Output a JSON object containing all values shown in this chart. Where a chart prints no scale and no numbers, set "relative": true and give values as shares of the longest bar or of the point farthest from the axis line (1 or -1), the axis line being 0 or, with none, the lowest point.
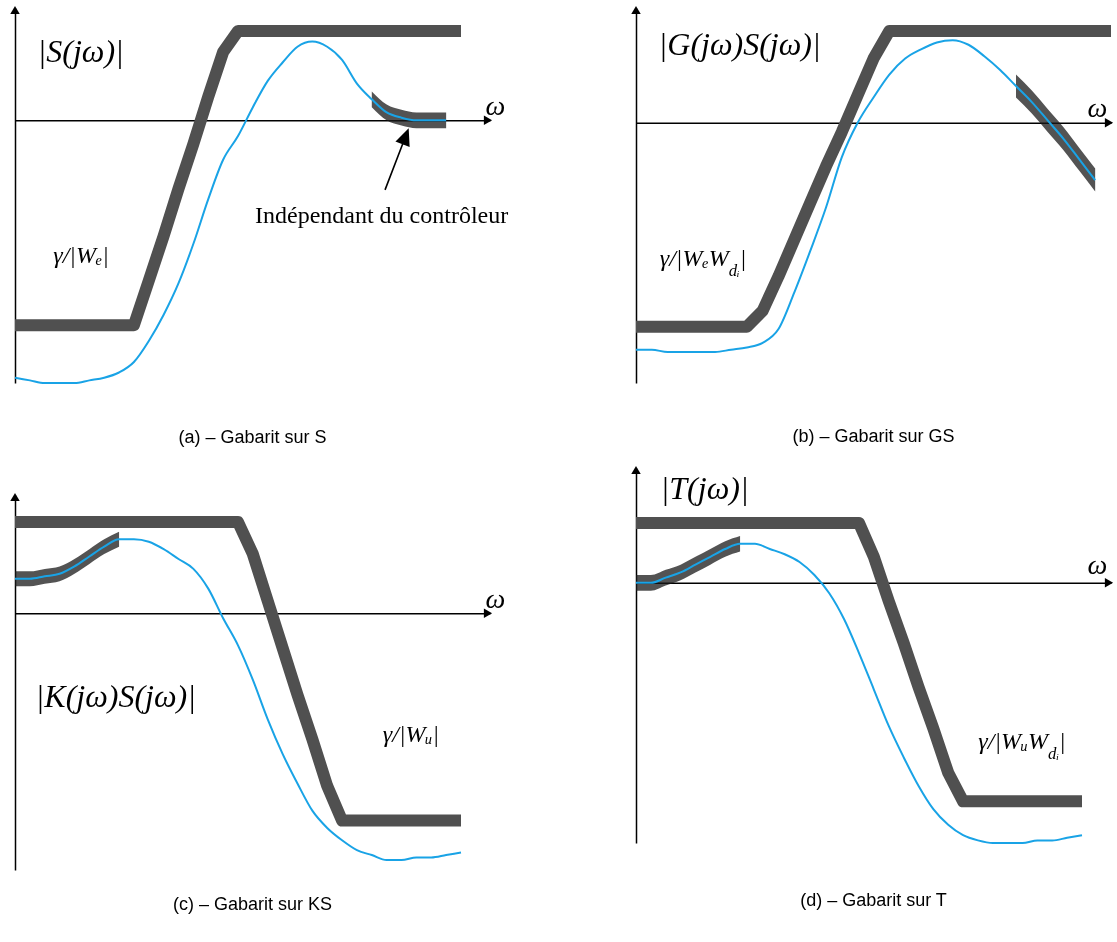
{
  "chart_data": [
    {
      "type": "line",
      "title": "(a) – Gabarit sur S",
      "xlabel": "ω",
      "ylabel": "|S(jω)|",
      "annotations": [
        "γ/|Wₑ|",
        "Indépendant du contrôleur"
      ],
      "relative": true,
      "categories": [
        null,
        null,
        null,
        null,
        null,
        null,
        null,
        null,
        null,
        null,
        null,
        null,
        null,
        null,
        null,
        null,
        null,
        null,
        null,
        null,
        null,
        null,
        null,
        null,
        null,
        null,
        null,
        null,
        null,
        null,
        null
      ],
      "series": [
        {
          "color": "#505050",
          "values": [
            -0.78,
            -0.78,
            -0.78,
            -0.78,
            -0.78,
            -0.78,
            -0.78,
            -0.78,
            -0.78,
            -0.61,
            -0.44,
            -0.26,
            -0.09,
            0.09,
            0.26,
            0.34,
            0.34,
            0.34,
            0.34,
            0.34,
            0.34,
            0.34,
            0.34,
            0.34,
            0.34,
            0.34,
            0.34,
            0.34,
            0.34,
            0.34,
            0.34
          ]
        },
        {
          "color": "#19a3e6",
          "values": [
            -0.98,
            -0.99,
            -1.0,
            -1.0,
            -1.0,
            -0.99,
            -0.98,
            -0.96,
            -0.92,
            -0.84,
            -0.74,
            -0.62,
            -0.47,
            -0.3,
            -0.15,
            -0.06,
            0.05,
            0.15,
            0.22,
            0.28,
            0.3,
            0.28,
            0.23,
            0.14,
            0.08,
            0.03,
            0.01,
            0,
            0,
            0,
            null
          ],
          "lower": [
            null,
            null,
            null,
            null,
            null,
            null,
            null,
            null,
            null,
            null,
            null,
            null,
            null,
            null,
            null,
            null,
            null,
            null,
            null,
            null,
            null,
            null,
            null,
            null,
            0.05,
            0.0,
            -0.02,
            -0.03,
            -0.03,
            -0.03,
            null
          ],
          "upper": [
            null,
            null,
            null,
            null,
            null,
            null,
            null,
            null,
            null,
            null,
            null,
            null,
            null,
            null,
            null,
            null,
            null,
            null,
            null,
            null,
            null,
            null,
            null,
            null,
            0.11,
            0.06,
            0.04,
            0.03,
            0.03,
            0.03,
            null
          ]
        }
      ]
    },
    {
      "type": "line",
      "title": "(b) – Gabarit sur GS",
      "xlabel": "ω",
      "ylabel": "|G(jω)S(jω)|",
      "annotations": [
        "γ/|WₑW$_{dᵢ}$|"
      ],
      "relative": true,
      "categories": [
        null,
        null,
        null,
        null,
        null,
        null,
        null,
        null,
        null,
        null,
        null,
        null,
        null,
        null,
        null,
        null,
        null,
        null,
        null,
        null,
        null,
        null,
        null,
        null,
        null,
        null,
        null,
        null,
        null,
        null,
        null
      ],
      "series": [
        {
          "color": "#505050",
          "values": [
            -0.89,
            -0.89,
            -0.89,
            -0.89,
            -0.89,
            -0.89,
            -0.89,
            -0.89,
            -0.82,
            -0.67,
            -0.51,
            -0.35,
            -0.19,
            -0.04,
            0.12,
            0.28,
            0.4,
            0.4,
            0.4,
            0.4,
            0.4,
            0.4,
            0.4,
            0.4,
            0.4,
            0.4,
            0.4,
            0.4,
            0.4,
            0.4,
            0.4
          ]
        },
        {
          "color": "#19a3e6",
          "values": [
            -0.99,
            -0.99,
            -1.0,
            -1.0,
            -1.0,
            -1.0,
            -0.99,
            -0.98,
            -0.96,
            -0.9,
            -0.74,
            -0.56,
            -0.37,
            -0.15,
            0.0,
            0.11,
            0.21,
            0.28,
            0.32,
            0.35,
            0.36,
            0.34,
            0.29,
            0.23,
            0.16,
            0.09,
            0.01,
            -0.07,
            -0.16,
            -0.25,
            null
          ],
          "lower": [
            null,
            null,
            null,
            null,
            null,
            null,
            null,
            null,
            null,
            null,
            null,
            null,
            null,
            null,
            null,
            null,
            null,
            null,
            null,
            null,
            null,
            null,
            null,
            null,
            0.11,
            0.04,
            -0.04,
            -0.12,
            -0.21,
            -0.3,
            null
          ],
          "upper": [
            null,
            null,
            null,
            null,
            null,
            null,
            null,
            null,
            null,
            null,
            null,
            null,
            null,
            null,
            null,
            null,
            null,
            null,
            null,
            null,
            null,
            null,
            null,
            null,
            0.21,
            0.14,
            0.06,
            -0.02,
            -0.11,
            -0.2,
            null
          ]
        }
      ]
    },
    {
      "type": "line",
      "title": "(c) – Gabarit sur KS",
      "xlabel": "ω",
      "ylabel": "|K(jω)S(jω)|",
      "annotations": [
        "γ/|Wᵤ|"
      ],
      "relative": true,
      "categories": [
        null,
        null,
        null,
        null,
        null,
        null,
        null,
        null,
        null,
        null,
        null,
        null,
        null,
        null,
        null,
        null,
        null,
        null,
        null,
        null,
        null,
        null,
        null,
        null,
        null,
        null,
        null,
        null,
        null,
        null,
        null
      ],
      "series": [
        {
          "color": "#505050",
          "values": [
            0.37,
            0.37,
            0.37,
            0.37,
            0.37,
            0.37,
            0.37,
            0.37,
            0.37,
            0.37,
            0.37,
            0.37,
            0.37,
            0.37,
            0.37,
            0.37,
            0.24,
            0.05,
            -0.14,
            -0.33,
            -0.51,
            -0.7,
            -0.84,
            -0.84,
            -0.84,
            -0.84,
            -0.84,
            -0.84,
            -0.84,
            -0.84,
            -0.84
          ]
        },
        {
          "color": "#19a3e6",
          "values": [
            0.14,
            0.14,
            0.15,
            0.16,
            0.19,
            0.23,
            0.27,
            0.3,
            0.3,
            0.29,
            0.26,
            0.22,
            0.18,
            0.1,
            -0.02,
            -0.13,
            -0.27,
            -0.43,
            -0.57,
            -0.69,
            -0.8,
            -0.87,
            -0.92,
            -0.96,
            -0.98,
            -1.0,
            -1.0,
            -0.99,
            -0.99,
            -0.98,
            -0.97
          ],
          "lower": [
            0.11,
            0.11,
            0.12,
            0.13,
            0.16,
            0.2,
            0.24,
            0.27,
            null,
            null,
            null,
            null,
            null,
            null,
            null,
            null,
            null,
            null,
            null,
            null,
            null,
            null,
            null,
            null,
            null,
            null,
            null,
            null,
            null,
            null,
            null
          ],
          "upper": [
            0.17,
            0.17,
            0.18,
            0.19,
            0.22,
            0.26,
            0.3,
            0.33,
            null,
            null,
            null,
            null,
            null,
            null,
            null,
            null,
            null,
            null,
            null,
            null,
            null,
            null,
            null,
            null,
            null,
            null,
            null,
            null,
            null,
            null,
            null
          ]
        }
      ]
    },
    {
      "type": "line",
      "title": "(d) – Gabarit sur T",
      "xlabel": "ω",
      "ylabel": "|T(jω)|",
      "annotations": [
        "γ/|WᵤW$_{dᵢ}$|"
      ],
      "relative": true,
      "categories": [
        null,
        null,
        null,
        null,
        null,
        null,
        null,
        null,
        null,
        null,
        null,
        null,
        null,
        null,
        null,
        null,
        null,
        null,
        null,
        null,
        null,
        null,
        null,
        null,
        null,
        null,
        null,
        null,
        null,
        null,
        null
      ],
      "series": [
        {
          "color": "#505050",
          "values": [
            0.23,
            0.23,
            0.23,
            0.23,
            0.23,
            0.23,
            0.23,
            0.23,
            0.23,
            0.23,
            0.23,
            0.23,
            0.23,
            0.23,
            0.23,
            0.23,
            0.1,
            -0.07,
            -0.23,
            -0.4,
            -0.56,
            -0.73,
            -0.84,
            -0.84,
            -0.84,
            -0.84,
            -0.84,
            -0.84,
            -0.84,
            -0.84,
            -0.84
          ]
        },
        {
          "color": "#19a3e6",
          "values": [
            0.0,
            0.0,
            0.02,
            0.04,
            0.07,
            0.1,
            0.13,
            0.15,
            0.15,
            0.13,
            0.11,
            0.08,
            0.03,
            -0.04,
            -0.14,
            -0.27,
            -0.41,
            -0.55,
            -0.67,
            -0.78,
            -0.87,
            -0.93,
            -0.97,
            -0.99,
            -1.0,
            -1.0,
            -1.0,
            -0.99,
            -0.99,
            -0.98,
            -0.97
          ],
          "lower": [
            -0.03,
            -0.03,
            -0.01,
            0.01,
            0.04,
            0.07,
            0.1,
            0.12,
            null,
            null,
            null,
            null,
            null,
            null,
            null,
            null,
            null,
            null,
            null,
            null,
            null,
            null,
            null,
            null,
            null,
            null,
            null,
            null,
            null,
            null,
            null
          ],
          "upper": [
            0.03,
            0.03,
            0.05,
            0.07,
            0.1,
            0.13,
            0.16,
            0.18,
            null,
            null,
            null,
            null,
            null,
            null,
            null,
            null,
            null,
            null,
            null,
            null,
            null,
            null,
            null,
            null,
            null,
            null,
            null,
            null,
            null,
            null,
            null
          ]
        }
      ]
    }
  ]
}
